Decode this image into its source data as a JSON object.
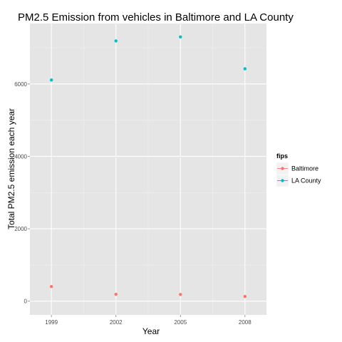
{
  "chart_data": {
    "type": "scatter",
    "title": "PM2.5 Emission from vehicles in Baltimore and LA County",
    "xlabel": "Year",
    "ylabel": "Total PM2.5 emission each year",
    "x_ticks": [
      1999,
      2002,
      2005,
      2008
    ],
    "y_ticks": [
      0,
      2000,
      4000,
      6000
    ],
    "xlim": [
      1998.0,
      2009.0
    ],
    "ylim": [
      -380,
      7670
    ],
    "grid": true,
    "legend": {
      "title": "fips",
      "placement": "right"
    },
    "series": [
      {
        "name": "Baltimore",
        "color": "#F8766D",
        "x": [
          1999,
          2002,
          2005,
          2008
        ],
        "y": [
          403,
          190,
          185,
          130
        ]
      },
      {
        "name": "LA County",
        "color": "#00BFC4",
        "x": [
          1999,
          2002,
          2005,
          2008
        ],
        "y": [
          6110,
          7190,
          7300,
          6420
        ]
      }
    ]
  }
}
